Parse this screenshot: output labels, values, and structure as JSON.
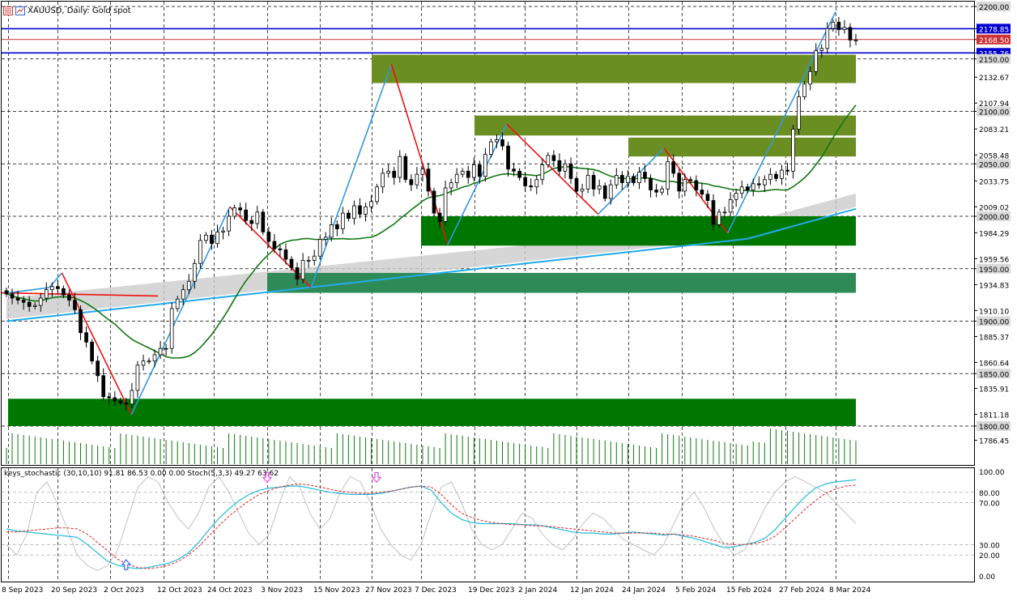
{
  "header": {
    "symbol_title": "XAUUSD, Daily:  Gold spot",
    "icons": [
      "chart-menu-icon",
      "indicator-window-icon"
    ]
  },
  "indicator": {
    "label": "keys_stochastic (30,10,10) 91.81 86.53 0.00 0.00 Stoch(5,3,3) 49.27 63.62"
  },
  "colors": {
    "up_candle": "#ffffff",
    "down_candle": "#000000",
    "zigzag_up": "#3399dd",
    "zigzag_down": "#ee1111",
    "ma_fast": "#117711",
    "ma_slow": "#22aaee",
    "cloud": "#cccccc",
    "zone_olive": "#6b8e23",
    "zone_green": "#007700",
    "zone_teal": "#2e8b57",
    "hline_blue": "#0000cc",
    "hline_red": "#cc3333",
    "volume": "#117711",
    "stoch_main": "#22bbdd",
    "stoch_signal": "#dd2222",
    "stoch_grey": "#bbbbbb",
    "signal_up_arrow": "#3366ff",
    "signal_down_arrow": "#ee44ee"
  },
  "chart_data": [
    {
      "type": "candlestick",
      "title": "XAUUSD, Daily:  Gold spot",
      "y_axis": {
        "ticks": [
          "2200.00",
          "2178.85",
          "2168.50",
          "2155.76",
          "2150.00",
          "2132.67",
          "2107.94",
          "2100.00",
          "2083.21",
          "2058.48",
          "2050.00",
          "2033.75",
          "2009.02",
          "2000.00",
          "1984.29",
          "1959.56",
          "1950.00",
          "1934.83",
          "1910.10",
          "1900.00",
          "1885.37",
          "1860.64",
          "1850.00",
          "1835.91",
          "1811.18",
          "1800.00",
          "1786.45"
        ],
        "highlighted": [
          "2200.00",
          "2178.85",
          "2168.50",
          "2155.76",
          "2150.00",
          "2100.00",
          "2050.00",
          "2000.00",
          "1950.00",
          "1900.00",
          "1850.00",
          "1800.00"
        ],
        "range": [
          1775,
          2203
        ]
      },
      "x_axis": {
        "ticks": [
          "8 Sep 2023",
          "20 Sep 2023",
          "2 Oct 2023",
          "12 Oct 2023",
          "24 Oct 2023",
          "3 Nov 2023",
          "15 Nov 2023",
          "27 Nov 2023",
          "7 Dec 2023",
          "19 Dec 2023",
          "2 Jan 2024",
          "12 Jan 2024",
          "24 Jan 2024",
          "5 Feb 2024",
          "15 Feb 2024",
          "27 Feb 2024",
          "8 Mar 2024"
        ]
      },
      "horizontal_lines": [
        {
          "price": 2178.85,
          "color": "blue"
        },
        {
          "price": 2168.5,
          "color": "red"
        },
        {
          "price": 2155.76,
          "color": "blue"
        }
      ],
      "zones": [
        {
          "from": 2127,
          "to": 2154,
          "color": "olive",
          "start": "27 Nov 2023"
        },
        {
          "from": 2077,
          "to": 2096,
          "color": "olive",
          "start": "19 Dec 2023"
        },
        {
          "from": 2057,
          "to": 2075,
          "color": "olive",
          "start": "24 Jan 2024"
        },
        {
          "from": 1972,
          "to": 2000,
          "color": "green",
          "start": "7 Dec 2023"
        },
        {
          "from": 1927,
          "to": 1946,
          "color": "teal",
          "start": "3 Nov 2023"
        },
        {
          "from": 1800,
          "to": 1826,
          "color": "green",
          "start": "8 Sep 2023"
        }
      ],
      "candles_close": [
        1926,
        1922,
        1920,
        1918,
        1914,
        1915,
        1922,
        1930,
        1933,
        1931,
        1925,
        1920,
        1911,
        1889,
        1880,
        1862,
        1848,
        1828,
        1827,
        1824,
        1822,
        1821,
        1834,
        1858,
        1862,
        1862,
        1868,
        1874,
        1874,
        1912,
        1921,
        1930,
        1938,
        1955,
        1977,
        1982,
        1974,
        1985,
        1986,
        2000,
        2008,
        2006,
        1996,
        1993,
        2004,
        1985,
        1976,
        1969,
        1968,
        1959,
        1951,
        1940,
        1958,
        1958,
        1962,
        1978,
        1980,
        1992,
        1988,
        2003,
        1998,
        2010,
        2002,
        2009,
        2014,
        2028,
        2041,
        2043,
        2037,
        2057,
        2035,
        2030,
        2040,
        2045,
        2024,
        2003,
        1995,
        2027,
        2032,
        2040,
        2043,
        2037,
        2049,
        2038,
        2059,
        2071,
        2073,
        2067,
        2045,
        2043,
        2037,
        2029,
        2028,
        2035,
        2049,
        2058,
        2053,
        2043,
        2050,
        2036,
        2024,
        2026,
        2039,
        2026,
        2029,
        2017,
        2030,
        2039,
        2032,
        2038,
        2032,
        2042,
        2036,
        2025,
        2023,
        2026,
        2052,
        2041,
        2024,
        2035,
        2034,
        2025,
        2021,
        2015,
        1992,
        2004,
        2004,
        2016,
        2022,
        2028,
        2025,
        2031,
        2030,
        2035,
        2040,
        2036,
        2044,
        2043,
        2083,
        2114,
        2126,
        2138,
        2158,
        2160,
        2179,
        2185,
        2178,
        2180,
        2168,
        2168
      ],
      "zigzag": [
        {
          "date": "8 Sep 2023",
          "price": 1927
        },
        {
          "date": "18 Sep 2023",
          "price": 1932
        },
        {
          "date": "21 Sep 2023",
          "price": 1946
        },
        {
          "date": "6 Oct 2023",
          "price": 1811
        },
        {
          "date": "27 Oct 2023",
          "price": 2009
        },
        {
          "date": "13 Nov 2023",
          "price": 1932
        },
        {
          "date": "1 Dec 2023",
          "price": 2145
        },
        {
          "date": "13 Dec 2023",
          "price": 1973
        },
        {
          "date": "28 Dec 2023",
          "price": 2088
        },
        {
          "date": "17 Jan 2024",
          "price": 2002
        },
        {
          "date": "1 Feb 2024",
          "price": 2065
        },
        {
          "date": "14 Feb 2024",
          "price": 1984
        },
        {
          "date": "8 Mar 2024",
          "price": 2195
        }
      ]
    },
    {
      "type": "line",
      "title": "keys_stochastic (30,10,10) 91.81 86.53 0.00 0.00 Stoch(5,3,3) 49.27 63.62",
      "y_axis": {
        "ticks": [
          "100.00",
          "80.00",
          "70.00",
          "30.00",
          "20.00",
          "0.00"
        ],
        "range": [
          0,
          100
        ]
      },
      "series": [
        {
          "name": "",
          "color": "cyan",
          "values": [
            45,
            43,
            42,
            41,
            40,
            39,
            38,
            37,
            30,
            22,
            14,
            10,
            8,
            7,
            8,
            10,
            12,
            16,
            22,
            32,
            44,
            55,
            64,
            72,
            78,
            82,
            84,
            85,
            86,
            86,
            84,
            82,
            80,
            79,
            78,
            78,
            78,
            79,
            81,
            83,
            85,
            86,
            82,
            70,
            60,
            54,
            51,
            50,
            50,
            50,
            50,
            49,
            49,
            48,
            46,
            44,
            42,
            41,
            41,
            40,
            40,
            41,
            42,
            41,
            40,
            39,
            40,
            38,
            36,
            33,
            30,
            27,
            28,
            30,
            32,
            36,
            44,
            55,
            66,
            76,
            84,
            88,
            90,
            91,
            92
          ]
        },
        {
          "name": "",
          "color": "red-dashed",
          "values": [
            42,
            42,
            43,
            44,
            45,
            46,
            46,
            45,
            40,
            32,
            24,
            16,
            11,
            8,
            7,
            8,
            10,
            14,
            20,
            28,
            38,
            48,
            57,
            65,
            72,
            78,
            82,
            85,
            87,
            88,
            87,
            85,
            83,
            81,
            80,
            79,
            79,
            80,
            81,
            83,
            85,
            86,
            85,
            78,
            68,
            60,
            56,
            53,
            51,
            50,
            49,
            49,
            48,
            48,
            47,
            46,
            45,
            44,
            43,
            42,
            41,
            41,
            41,
            41,
            41,
            40,
            40,
            39,
            38,
            36,
            34,
            31,
            30,
            30,
            31,
            33,
            38,
            46,
            55,
            64,
            72,
            79,
            83,
            86,
            87
          ]
        },
        {
          "name": "",
          "color": "grey",
          "values": [
            30,
            20,
            40,
            80,
            90,
            70,
            45,
            20,
            10,
            5,
            10,
            25,
            55,
            85,
            95,
            90,
            70,
            55,
            45,
            60,
            85,
            95,
            80,
            60,
            40,
            30,
            40,
            70,
            95,
            85,
            60,
            45,
            55,
            80,
            95,
            90,
            70,
            45,
            30,
            20,
            15,
            30,
            60,
            85,
            90,
            70,
            45,
            30,
            25,
            30,
            45,
            60,
            55,
            40,
            30,
            25,
            35,
            50,
            60,
            55,
            45,
            35,
            30,
            25,
            20,
            30,
            50,
            70,
            80,
            65,
            45,
            30,
            20,
            25,
            45,
            65,
            80,
            90,
            95,
            90,
            85,
            80,
            70,
            60,
            50
          ]
        }
      ],
      "arrows": [
        {
          "direction": "up",
          "date": "5 Oct 2023",
          "value": 10
        },
        {
          "direction": "down",
          "date": "3 Nov 2023",
          "value": 95
        },
        {
          "direction": "down",
          "date": "28 Nov 2023",
          "value": 95
        }
      ]
    }
  ]
}
